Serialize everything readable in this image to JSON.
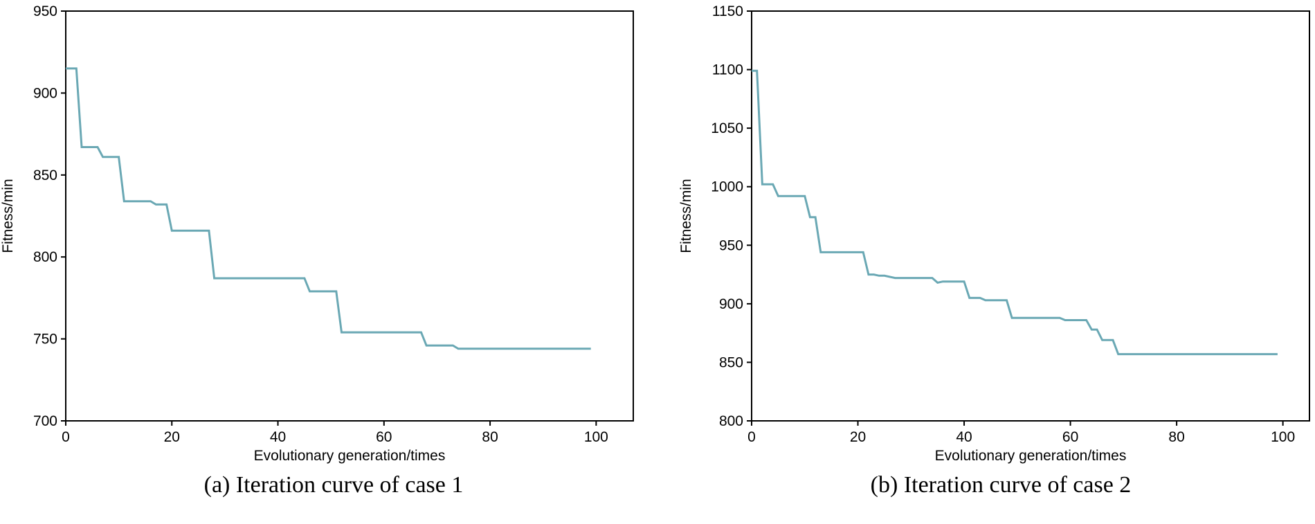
{
  "colors": {
    "line": "#6aa8b4",
    "axis": "#000000"
  },
  "chart_data": [
    {
      "type": "line",
      "caption": "(a) Iteration curve of case 1",
      "xlabel": "Evolutionary generation/times",
      "ylabel": "Fitness/min",
      "xlim": [
        0,
        107
      ],
      "ylim": [
        700,
        950
      ],
      "xticks": [
        0,
        20,
        40,
        60,
        80,
        100
      ],
      "yticks": [
        700,
        750,
        800,
        850,
        900,
        950
      ],
      "series": [
        {
          "name": "fitness",
          "x": [
            0,
            2,
            3,
            6,
            7,
            10,
            11,
            16,
            17,
            19,
            20,
            27,
            28,
            45,
            46,
            51,
            52,
            67,
            68,
            73,
            74,
            99
          ],
          "y": [
            915,
            915,
            867,
            867,
            861,
            861,
            834,
            834,
            832,
            832,
            816,
            816,
            787,
            787,
            779,
            779,
            754,
            754,
            746,
            746,
            744,
            744
          ]
        }
      ]
    },
    {
      "type": "line",
      "caption": "(b) Iteration curve of case 2",
      "xlabel": "Evolutionary generation/times",
      "ylabel": "Fitness/min",
      "xlim": [
        0,
        105
      ],
      "ylim": [
        800,
        1150
      ],
      "xticks": [
        0,
        20,
        40,
        60,
        80,
        100
      ],
      "yticks": [
        800,
        850,
        900,
        950,
        1000,
        1050,
        1100,
        1150
      ],
      "series": [
        {
          "name": "fitness",
          "x": [
            0,
            1,
            2,
            4,
            5,
            10,
            11,
            12,
            13,
            21,
            22,
            23,
            24,
            25,
            27,
            34,
            35,
            36,
            40,
            41,
            43,
            44,
            48,
            49,
            58,
            59,
            63,
            64,
            65,
            66,
            68,
            69,
            99
          ],
          "y": [
            1099,
            1099,
            1002,
            1002,
            992,
            992,
            974,
            974,
            944,
            944,
            925,
            925,
            924,
            924,
            922,
            922,
            918,
            919,
            919,
            905,
            905,
            903,
            903,
            888,
            888,
            886,
            886,
            878,
            878,
            869,
            869,
            857,
            857
          ]
        }
      ]
    }
  ]
}
